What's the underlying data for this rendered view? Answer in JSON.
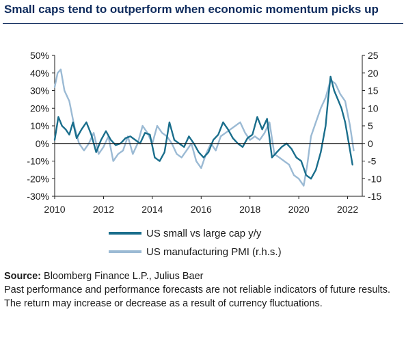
{
  "title": "Small caps tend to outperform when economic momentum picks up",
  "footer": {
    "source_label": "Source:",
    "source_text": "Bloomberg Finance L.P., Julius Baer",
    "disclaimer": "Past performance and performance forecasts are not reliable indicators of future results. The return may increase or decrease as a result of currency fluctuations."
  },
  "chart_data": {
    "type": "line",
    "title": "Small caps tend to outperform when economic momentum picks up",
    "xlabel": "",
    "ylabel": "",
    "x_ticks": [
      "2010",
      "2012",
      "2014",
      "2016",
      "2018",
      "2020",
      "2022"
    ],
    "xlim": [
      2010,
      2022.6
    ],
    "y_left_ticks": [
      "50%",
      "40%",
      "30%",
      "20%",
      "10%",
      "0%",
      "-10%",
      "-20%",
      "-30%"
    ],
    "y_left_lim": [
      -30,
      50
    ],
    "y_right_ticks": [
      "25",
      "20",
      "15",
      "10",
      "5",
      "0",
      "-5",
      "-10",
      "-15"
    ],
    "y_right_lim": [
      -15,
      25
    ],
    "grid": false,
    "zero_line": true,
    "legend_position": "bottom-center",
    "series": [
      {
        "name": "US small vs large cap y/y",
        "axis": "left",
        "color": "#1a6e8c",
        "x": [
          2010.0,
          2010.15,
          2010.3,
          2010.45,
          2010.6,
          2010.75,
          2010.9,
          2011.1,
          2011.3,
          2011.5,
          2011.7,
          2011.9,
          2012.1,
          2012.3,
          2012.5,
          2012.7,
          2012.9,
          2013.1,
          2013.3,
          2013.5,
          2013.7,
          2013.9,
          2014.1,
          2014.3,
          2014.5,
          2014.7,
          2014.9,
          2015.1,
          2015.3,
          2015.5,
          2015.7,
          2015.9,
          2016.1,
          2016.3,
          2016.5,
          2016.7,
          2016.9,
          2017.1,
          2017.3,
          2017.5,
          2017.7,
          2017.9,
          2018.1,
          2018.3,
          2018.5,
          2018.7,
          2018.9,
          2019.1,
          2019.3,
          2019.5,
          2019.7,
          2019.9,
          2020.1,
          2020.3,
          2020.5,
          2020.7,
          2020.9,
          2021.1,
          2021.2,
          2021.3,
          2021.45,
          2021.6,
          2021.75,
          2021.9,
          2022.05,
          2022.2
        ],
        "values": [
          2,
          15,
          10,
          8,
          5,
          12,
          3,
          8,
          12,
          5,
          -5,
          2,
          7,
          2,
          -1,
          0,
          3,
          4,
          2,
          0,
          6,
          5,
          -8,
          -10,
          -5,
          12,
          2,
          0,
          -2,
          4,
          0,
          -5,
          -8,
          -5,
          2,
          5,
          12,
          8,
          3,
          0,
          -2,
          3,
          5,
          15,
          8,
          14,
          -8,
          -5,
          -2,
          0,
          -3,
          -8,
          -10,
          -18,
          -20,
          -15,
          -5,
          10,
          25,
          38,
          30,
          25,
          20,
          12,
          0,
          -12
        ]
      },
      {
        "name": "US manufacturing PMI (r.h.s.)",
        "axis": "right",
        "color": "#9bbad4",
        "x": [
          2010.0,
          2010.12,
          2010.25,
          2010.4,
          2010.6,
          2010.8,
          2011.0,
          2011.2,
          2011.4,
          2011.6,
          2011.8,
          2012.0,
          2012.2,
          2012.4,
          2012.6,
          2012.8,
          2013.0,
          2013.2,
          2013.4,
          2013.6,
          2013.8,
          2014.0,
          2014.2,
          2014.4,
          2014.6,
          2014.8,
          2015.0,
          2015.2,
          2015.4,
          2015.6,
          2015.8,
          2016.0,
          2016.2,
          2016.4,
          2016.6,
          2016.8,
          2017.0,
          2017.2,
          2017.4,
          2017.6,
          2017.8,
          2018.0,
          2018.2,
          2018.4,
          2018.6,
          2018.8,
          2019.0,
          2019.2,
          2019.4,
          2019.6,
          2019.8,
          2020.0,
          2020.2,
          2020.35,
          2020.5,
          2020.7,
          2020.9,
          2021.1,
          2021.3,
          2021.5,
          2021.7,
          2021.9,
          2022.1,
          2022.25
        ],
        "values": [
          16,
          20,
          21,
          15,
          12,
          5,
          0,
          -2,
          0,
          3,
          -3,
          -1,
          2,
          -5,
          -3,
          -2,
          2,
          -3,
          0,
          5,
          3,
          0,
          5,
          3,
          2,
          0,
          -3,
          -4,
          -2,
          0,
          -5,
          -7,
          -3,
          0,
          -2,
          2,
          3,
          4,
          5,
          6,
          3,
          1,
          2,
          1,
          3,
          6,
          -3,
          -4,
          -5,
          -6,
          -9,
          -10,
          -12,
          -6,
          2,
          6,
          10,
          13,
          18,
          17,
          14,
          12,
          5,
          -2
        ]
      }
    ]
  }
}
